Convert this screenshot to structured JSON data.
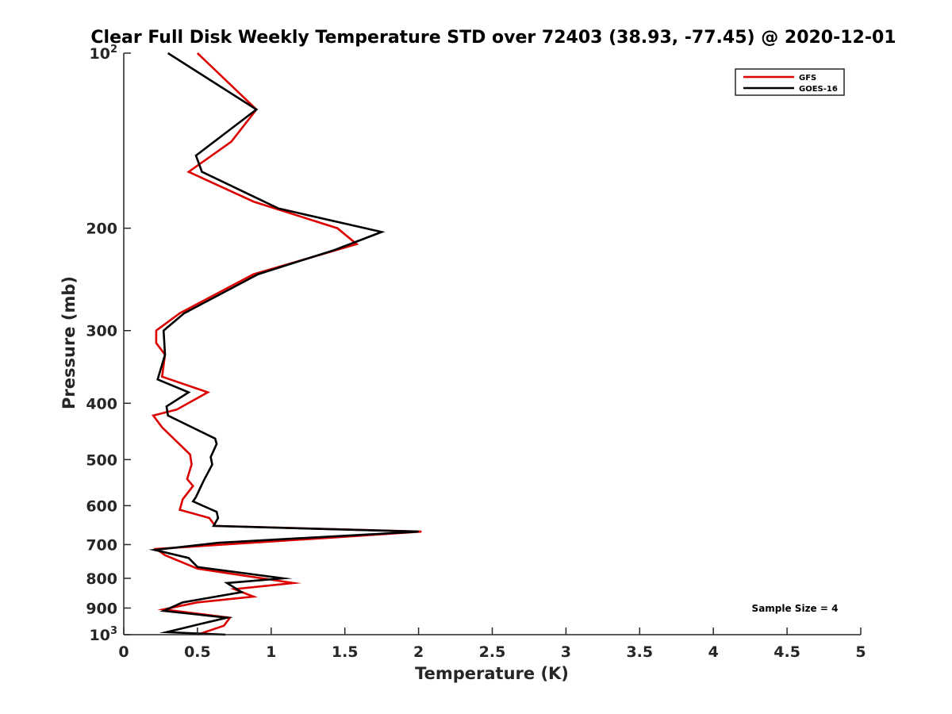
{
  "chart_data": {
    "type": "line",
    "title": "Clear Full Disk Weekly Temperature STD over 72403 (38.93, -77.45) @ 2020-12-01",
    "xlabel": "Temperature (K)",
    "ylabel": "Pressure (mb)",
    "xlim": [
      0,
      5
    ],
    "ylim": [
      100,
      1000
    ],
    "y_scale": "log",
    "y_reversed": true,
    "grid": false,
    "legend_position": "top-right",
    "x_ticks": [
      {
        "value": 0,
        "label": "0"
      },
      {
        "value": 0.5,
        "label": "0.5"
      },
      {
        "value": 1,
        "label": "1"
      },
      {
        "value": 1.5,
        "label": "1.5"
      },
      {
        "value": 2,
        "label": "2"
      },
      {
        "value": 2.5,
        "label": "2.5"
      },
      {
        "value": 3,
        "label": "3"
      },
      {
        "value": 3.5,
        "label": "3.5"
      },
      {
        "value": 4,
        "label": "4"
      },
      {
        "value": 4.5,
        "label": "4.5"
      },
      {
        "value": 5,
        "label": "5"
      }
    ],
    "y_ticks": [
      {
        "value": 100,
        "base": "10",
        "exp": "2"
      },
      {
        "value": 200,
        "base": "200",
        "exp": ""
      },
      {
        "value": 300,
        "base": "300",
        "exp": ""
      },
      {
        "value": 400,
        "base": "400",
        "exp": ""
      },
      {
        "value": 500,
        "base": "500",
        "exp": ""
      },
      {
        "value": 600,
        "base": "600",
        "exp": ""
      },
      {
        "value": 700,
        "base": "700",
        "exp": ""
      },
      {
        "value": 800,
        "base": "800",
        "exp": ""
      },
      {
        "value": 900,
        "base": "900",
        "exp": ""
      },
      {
        "value": 1000,
        "base": "10",
        "exp": "3"
      }
    ],
    "annotation": "Sample Size = 4",
    "series": [
      {
        "name": "GFS",
        "color": "#dd0000",
        "points": [
          [
            0.5,
            100
          ],
          [
            0.9,
            125
          ],
          [
            0.73,
            142
          ],
          [
            0.44,
            160
          ],
          [
            0.88,
            180
          ],
          [
            1.45,
            200
          ],
          [
            1.58,
            213
          ],
          [
            0.88,
            240
          ],
          [
            0.38,
            280
          ],
          [
            0.22,
            300
          ],
          [
            0.22,
            315
          ],
          [
            0.28,
            330
          ],
          [
            0.26,
            360
          ],
          [
            0.57,
            383
          ],
          [
            0.36,
            410
          ],
          [
            0.2,
            420
          ],
          [
            0.26,
            440
          ],
          [
            0.45,
            490
          ],
          [
            0.46,
            510
          ],
          [
            0.43,
            540
          ],
          [
            0.47,
            555
          ],
          [
            0.4,
            585
          ],
          [
            0.38,
            610
          ],
          [
            0.58,
            630
          ],
          [
            0.62,
            650
          ],
          [
            2.02,
            665
          ],
          [
            1.45,
            680
          ],
          [
            0.22,
            712
          ],
          [
            0.28,
            730
          ],
          [
            0.5,
            770
          ],
          [
            1.15,
            815
          ],
          [
            0.75,
            835
          ],
          [
            0.88,
            860
          ],
          [
            0.5,
            880
          ],
          [
            0.27,
            905
          ],
          [
            0.72,
            935
          ],
          [
            0.68,
            965
          ],
          [
            0.5,
            1000
          ]
        ]
      },
      {
        "name": "GOES-16",
        "color": "#000000",
        "points": [
          [
            0.3,
            100
          ],
          [
            0.9,
            125
          ],
          [
            0.49,
            150
          ],
          [
            0.53,
            160
          ],
          [
            1.05,
            185
          ],
          [
            1.75,
            203
          ],
          [
            1.43,
            218
          ],
          [
            0.91,
            240
          ],
          [
            0.74,
            253
          ],
          [
            0.41,
            280
          ],
          [
            0.27,
            300
          ],
          [
            0.28,
            330
          ],
          [
            0.23,
            364
          ],
          [
            0.44,
            383
          ],
          [
            0.29,
            405
          ],
          [
            0.3,
            420
          ],
          [
            0.62,
            460
          ],
          [
            0.63,
            470
          ],
          [
            0.59,
            495
          ],
          [
            0.6,
            510
          ],
          [
            0.54,
            545
          ],
          [
            0.49,
            580
          ],
          [
            0.47,
            590
          ],
          [
            0.63,
            615
          ],
          [
            0.64,
            630
          ],
          [
            0.61,
            650
          ],
          [
            2.0,
            665
          ],
          [
            0.64,
            695
          ],
          [
            0.21,
            715
          ],
          [
            0.44,
            738
          ],
          [
            0.5,
            765
          ],
          [
            1.08,
            800
          ],
          [
            0.7,
            815
          ],
          [
            0.8,
            845
          ],
          [
            0.4,
            880
          ],
          [
            0.27,
            910
          ],
          [
            0.7,
            935
          ],
          [
            0.57,
            952
          ],
          [
            0.29,
            990
          ],
          [
            0.69,
            1000
          ]
        ]
      }
    ]
  }
}
